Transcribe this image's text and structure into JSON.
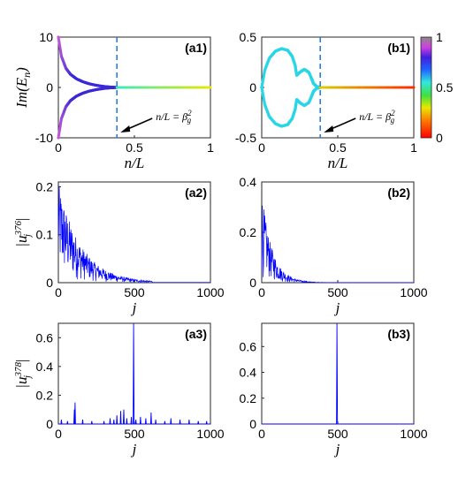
{
  "chart_data": [
    {
      "id": "a1",
      "type": "scatter",
      "panel_label": "(a1)",
      "xlabel": "n/L",
      "ylabel": "Im(E_n)",
      "xlim": [
        0,
        1
      ],
      "ylim": [
        -10,
        10
      ],
      "xticks": [
        "0",
        "0.5",
        "1"
      ],
      "yticks": [
        "10",
        "0",
        "-10"
      ],
      "threshold_x": 0.385,
      "annotation": "n/L = β_g^2",
      "branches": [
        {
          "x": [
            0,
            0.02,
            0.05,
            0.08,
            0.12,
            0.16,
            0.2,
            0.25,
            0.3,
            0.35,
            0.385
          ],
          "y": [
            10,
            6.2,
            3.8,
            2.6,
            1.7,
            1.15,
            0.75,
            0.42,
            0.2,
            0.06,
            0
          ]
        },
        {
          "x": [
            0,
            0.02,
            0.05,
            0.08,
            0.12,
            0.16,
            0.2,
            0.25,
            0.3,
            0.35,
            0.385
          ],
          "y": [
            -10,
            -6.2,
            -3.8,
            -2.6,
            -1.7,
            -1.15,
            -0.75,
            -0.42,
            -0.2,
            -0.06,
            0
          ]
        }
      ],
      "real_segment": {
        "x": [
          0.385,
          1
        ],
        "y": [
          0,
          0
        ]
      },
      "colors": {
        "branch_start": "#c65ad6",
        "branch_end": "#3a28d8",
        "real_start": "#39e9c0",
        "real_end": "#e8e800"
      }
    },
    {
      "id": "b1",
      "type": "scatter",
      "panel_label": "(b1)",
      "xlabel": "n/L",
      "ylabel": "",
      "xlim": [
        0,
        1
      ],
      "ylim": [
        -0.5,
        0.5
      ],
      "xticks": [
        "0",
        "0.5",
        "1"
      ],
      "yticks": [
        "0.5",
        "0",
        "-0.5"
      ],
      "threshold_x": 0.385,
      "annotation": "n/L = β_g^2",
      "loops": [
        {
          "x": [
            0,
            0.02,
            0.05,
            0.09,
            0.13,
            0.17,
            0.2,
            0.22,
            0.23,
            0.25,
            0.28,
            0.31,
            0.33,
            0.34,
            0.36,
            0.385
          ],
          "y": [
            0,
            0.17,
            0.29,
            0.36,
            0.385,
            0.37,
            0.31,
            0.22,
            0.12,
            0.15,
            0.18,
            0.15,
            0.08,
            0.04,
            0.01,
            0
          ]
        },
        {
          "x": [
            0,
            0.02,
            0.05,
            0.09,
            0.13,
            0.17,
            0.2,
            0.22,
            0.23,
            0.25,
            0.28,
            0.31,
            0.33,
            0.34,
            0.36,
            0.385
          ],
          "y": [
            0,
            -0.17,
            -0.29,
            -0.36,
            -0.385,
            -0.37,
            -0.31,
            -0.22,
            -0.12,
            -0.15,
            -0.18,
            -0.15,
            -0.08,
            -0.04,
            -0.01,
            0
          ]
        }
      ],
      "real_segment": {
        "x": [
          0.385,
          1
        ],
        "y": [
          0,
          0
        ]
      },
      "colors": {
        "loop": "#2ad6e6",
        "real_start": "#d8d000",
        "real_end": "#ff2a00"
      },
      "colorbar": {
        "ticks": [
          "1",
          "0.5",
          "0"
        ],
        "range": [
          0,
          1
        ]
      }
    },
    {
      "id": "a2",
      "type": "line",
      "panel_label": "(a2)",
      "xlabel": "j",
      "ylabel": "|u_j^376|",
      "xlim": [
        0,
        1000
      ],
      "ylim": [
        0,
        0.21
      ],
      "xticks": [
        "0",
        "500",
        "1000"
      ],
      "yticks": [
        "0.2",
        "0.1",
        "0"
      ],
      "envelope": {
        "amplitude": 0.21,
        "decay_length": 150,
        "cutoff": 620
      },
      "color": "#0000ff"
    },
    {
      "id": "b2",
      "type": "line",
      "panel_label": "(b2)",
      "xlabel": "j",
      "ylabel": "",
      "xlim": [
        0,
        1000
      ],
      "ylim": [
        0,
        0.4
      ],
      "xticks": [
        "0",
        "500",
        "1000"
      ],
      "yticks": [
        "0.4",
        "0.2",
        "0"
      ],
      "envelope": {
        "amplitude": 0.36,
        "decay_length": 70,
        "cutoff": 420
      },
      "color": "#0000ff"
    },
    {
      "id": "a3",
      "type": "line",
      "panel_label": "(a3)",
      "xlabel": "j",
      "ylabel": "|u_j^378|",
      "xlim": [
        0,
        1000
      ],
      "ylim": [
        0,
        0.7
      ],
      "xticks": [
        "0",
        "500",
        "1000"
      ],
      "yticks": [
        "0.6",
        "0.4",
        "0.2",
        "0"
      ],
      "peaks": [
        {
          "x": 20,
          "y": 0.03
        },
        {
          "x": 60,
          "y": 0.02
        },
        {
          "x": 105,
          "y": 0.1
        },
        {
          "x": 110,
          "y": 0.15
        },
        {
          "x": 160,
          "y": 0.03
        },
        {
          "x": 220,
          "y": 0.02
        },
        {
          "x": 300,
          "y": 0.02
        },
        {
          "x": 340,
          "y": 0.04
        },
        {
          "x": 365,
          "y": 0.03
        },
        {
          "x": 385,
          "y": 0.06
        },
        {
          "x": 410,
          "y": 0.09
        },
        {
          "x": 430,
          "y": 0.1
        },
        {
          "x": 450,
          "y": 0.04
        },
        {
          "x": 480,
          "y": 0.05
        },
        {
          "x": 495,
          "y": 0.7
        },
        {
          "x": 510,
          "y": 0.03
        },
        {
          "x": 540,
          "y": 0.05
        },
        {
          "x": 575,
          "y": 0.04
        },
        {
          "x": 610,
          "y": 0.08
        },
        {
          "x": 640,
          "y": 0.03
        },
        {
          "x": 700,
          "y": 0.02
        },
        {
          "x": 740,
          "y": 0.04
        },
        {
          "x": 800,
          "y": 0.03
        },
        {
          "x": 860,
          "y": 0.03
        },
        {
          "x": 920,
          "y": 0.02
        },
        {
          "x": 975,
          "y": 0.02
        }
      ],
      "color": "#0000ff"
    },
    {
      "id": "b3",
      "type": "line",
      "panel_label": "(b3)",
      "xlabel": "j",
      "ylabel": "",
      "xlim": [
        0,
        1000
      ],
      "ylim": [
        0,
        0.78
      ],
      "xticks": [
        "0",
        "500",
        "1000"
      ],
      "yticks": [
        "0.6",
        "0.4",
        "0.2",
        "0"
      ],
      "peaks": [
        {
          "x": 495,
          "y": 0.78
        }
      ],
      "color": "#0000ff"
    }
  ]
}
